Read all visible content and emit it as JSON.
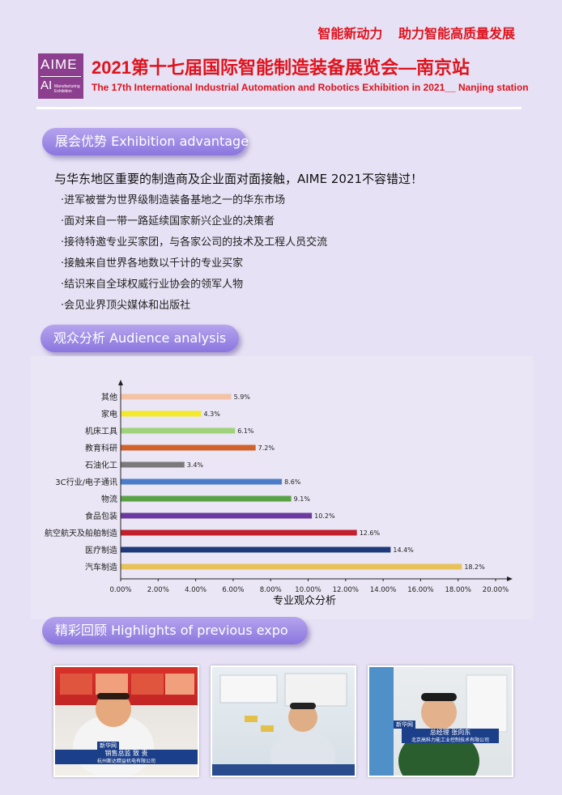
{
  "header": {
    "slogan": "智能新动力 助力智能高质量发展",
    "logo_text": "AIME",
    "logo_sub": "AI",
    "logo_small": "Manufacturing Exhibition",
    "title_cn": "2021第十七届国际智能制造装备展览会—南京站",
    "title_en": "The 17th International Industrial Automation and Robotics Exhibition in 2021__ Nanjing station"
  },
  "sections": {
    "advantage": "展会优势 Exhibition advantage",
    "audience": "观众分析    Audience analysis",
    "highlights": "精彩回顾    Highlights of previous expo"
  },
  "advantage": {
    "intro": "与华东地区重要的制造商及企业面对面接触，AIME 2021不容错过！",
    "bullets": [
      "·进军被誉为世界级制造装备基地之一的华东市场",
      "·面对来自一带一路延续国家新兴企业的决策者",
      "·接待特邀专业买家团，与各家公司的技术及工程人员交流",
      "·接触来自世界各地数以千计的专业买家",
      "·结识来自全球权威行业协会的领军人物",
      "·会见业界顶尖媒体和出版社"
    ]
  },
  "chart_data": {
    "type": "bar",
    "orientation": "horizontal",
    "xlabel": "专业观众分析",
    "xlim": [
      0,
      20
    ],
    "xticks": [
      "0.00%",
      "2.00%",
      "4.00%",
      "6.00%",
      "8.00%",
      "10.00%",
      "12.00%",
      "14.00%",
      "16.00%",
      "18.00%",
      "20.00%"
    ],
    "categories": [
      "其他",
      "家电",
      "机床工具",
      "教育科研",
      "石油化工",
      "3C行业/电子通讯",
      "物流",
      "食品包装",
      "航空航天及船舶制造",
      "医疗制造",
      "汽车制造"
    ],
    "values": [
      5.9,
      4.3,
      6.1,
      7.2,
      3.4,
      8.6,
      9.1,
      10.2,
      12.6,
      14.4,
      18.2
    ],
    "labels": [
      "5.9%",
      "4.3%",
      "6.1%",
      "7.2%",
      "3.4%",
      "8.6%",
      "9.1%",
      "10.2%",
      "12.6%",
      "14.4%",
      "18.2%"
    ],
    "colors": [
      "#f4c3a6",
      "#f2ea2b",
      "#9fd27a",
      "#d2622b",
      "#7a7a7a",
      "#4d7dc8",
      "#5aa246",
      "#6a3aa0",
      "#c0202c",
      "#1f3a7a",
      "#e8c15a"
    ]
  },
  "photos": [
    {
      "caption_title": "销售总监  致 贵",
      "caption_company": "杭州斯达精益机电有限公司",
      "tag": "新华网"
    },
    {
      "caption_title": "",
      "caption_company": "",
      "tag": ""
    },
    {
      "caption_title": "总经理  张向东",
      "caption_company": "北京高科力能工业控制技术有限公司",
      "tag": "新华网"
    }
  ]
}
